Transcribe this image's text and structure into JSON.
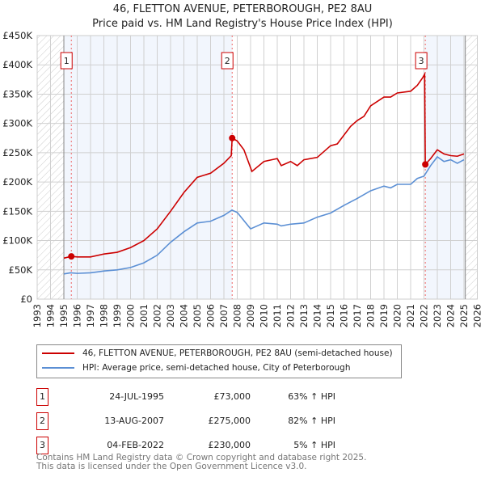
{
  "chart_data": {
    "type": "line",
    "title": "46, FLETTON AVENUE, PETERBOROUGH, PE2 8AU",
    "subtitle": "Price paid vs. HM Land Registry's House Price Index (HPI)",
    "xlim": [
      1993,
      2026
    ],
    "ylim": [
      0,
      450000
    ],
    "yticks": [
      {
        "v": 0,
        "label": "£0"
      },
      {
        "v": 50000,
        "label": "£50K"
      },
      {
        "v": 100000,
        "label": "£100K"
      },
      {
        "v": 150000,
        "label": "£150K"
      },
      {
        "v": 200000,
        "label": "£200K"
      },
      {
        "v": 250000,
        "label": "£250K"
      },
      {
        "v": 300000,
        "label": "£300K"
      },
      {
        "v": 350000,
        "label": "£350K"
      },
      {
        "v": 400000,
        "label": "£400K"
      },
      {
        "v": 450000,
        "label": "£450K"
      }
    ],
    "xticks": [
      "1993",
      "1994",
      "1995",
      "1996",
      "1997",
      "1998",
      "1999",
      "2000",
      "2001",
      "2002",
      "2003",
      "2004",
      "2005",
      "2006",
      "2007",
      "2008",
      "2009",
      "2010",
      "2011",
      "2012",
      "2013",
      "2014",
      "2015",
      "2016",
      "2017",
      "2018",
      "2019",
      "2020",
      "2021",
      "2022",
      "2023",
      "2024",
      "2025",
      "2026"
    ],
    "grid": true,
    "series": [
      {
        "name": "46, FLETTON AVENUE, PETERBOROUGH, PE2 8AU (semi-detached house)",
        "color": "#cc0000",
        "x": [
          1995.0,
          1995.56,
          1996,
          1997,
          1998,
          1999,
          2000,
          2001,
          2002,
          2003,
          2004,
          2005,
          2006,
          2007,
          2007.55,
          2007.62,
          2008,
          2008.5,
          2009.1,
          2010,
          2011,
          2011.3,
          2012,
          2012.5,
          2013,
          2014,
          2015,
          2015.5,
          2016,
          2016.5,
          2017,
          2017.5,
          2018,
          2019,
          2019.5,
          2020,
          2021,
          2021.5,
          2021.9,
          2022.05,
          2022.1,
          2022.5,
          2023,
          2023.5,
          2024,
          2024.5,
          2025
        ],
        "y": [
          70,
          73,
          72,
          72,
          77,
          80,
          88,
          100,
          120,
          150,
          182,
          208,
          215,
          232,
          245,
          275,
          270,
          255,
          218,
          235,
          240,
          228,
          235,
          228,
          238,
          242,
          262,
          265,
          280,
          295,
          305,
          312,
          330,
          345,
          345,
          352,
          355,
          365,
          378,
          384,
          230,
          240,
          255,
          248,
          245,
          244,
          248
        ]
      },
      {
        "name": "HPI: Average price, semi-detached house, City of Peterborough",
        "color": "#5b8fd4",
        "x": [
          1995.0,
          1995.5,
          1996,
          1997,
          1998,
          1999,
          2000,
          2001,
          2002,
          2003,
          2004,
          2005,
          2006,
          2007,
          2007.6,
          2008,
          2009,
          2010,
          2011,
          2011.3,
          2012,
          2013,
          2014,
          2015,
          2016,
          2017,
          2018,
          2019,
          2019.5,
          2020,
          2021,
          2021.5,
          2022,
          2022.5,
          2023,
          2023.5,
          2024,
          2024.5,
          2025
        ],
        "y": [
          43,
          45,
          44,
          45,
          48,
          50,
          54,
          62,
          75,
          97,
          115,
          130,
          133,
          143,
          152,
          148,
          120,
          130,
          128,
          125,
          128,
          130,
          140,
          147,
          160,
          172,
          185,
          193,
          190,
          196,
          196,
          206,
          210,
          228,
          243,
          235,
          238,
          232,
          238
        ]
      }
    ],
    "y_units": "thousands GBP",
    "sales": [
      {
        "n": "1",
        "x": 1995.56,
        "y": 73,
        "date": "24-JUL-1995",
        "price": "£73,000",
        "hpi": "63% ↑ HPI"
      },
      {
        "n": "2",
        "x": 2007.62,
        "y": 275,
        "date": "13-AUG-2007",
        "price": "£275,000",
        "hpi": "82% ↑ HPI"
      },
      {
        "n": "3",
        "x": 2022.1,
        "y": 230,
        "date": "04-FEB-2022",
        "price": "£230,000",
        "hpi": "5% ↑ HPI"
      }
    ],
    "legend_position": "below"
  },
  "footer": [
    "Contains HM Land Registry data © Crown copyright and database right 2025.",
    "This data is licensed under the Open Government Licence v3.0."
  ]
}
